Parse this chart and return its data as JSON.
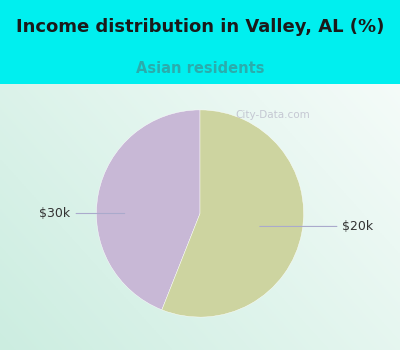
{
  "title": "Income distribution in Valley, AL (%)",
  "subtitle": "Asian residents",
  "title_color": "#1a1a1a",
  "subtitle_color": "#2aacac",
  "bg_cyan": "#00EFEF",
  "slices": [
    {
      "label": "$20k",
      "value": 44,
      "color": "#c8b8d6"
    },
    {
      "label": "$30k",
      "value": 56,
      "color": "#cdd4a0"
    }
  ],
  "watermark": "City-Data.com",
  "startangle": 90,
  "label_color": "#333333",
  "line_color": "#aaaacc",
  "label_fontsize": 9,
  "title_fontsize": 13,
  "subtitle_fontsize": 10.5
}
